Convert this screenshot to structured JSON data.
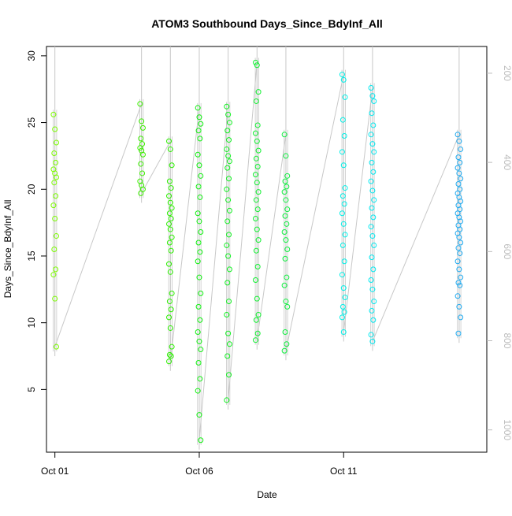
{
  "chart_data": {
    "type": "scatter",
    "title": "ATOM3 Southbound Days_Since_BdyInf_All",
    "xlabel": "Date",
    "ylabel": "Days_Since_BdyInf_All",
    "xlim": [
      "2023-09-30T17:00",
      "2023-10-15T23:00"
    ],
    "ylim": [
      0.3,
      30.7
    ],
    "x_ticks": [
      {
        "at": "2023-10-01T00:00",
        "label": "Oct 01"
      },
      {
        "at": "2023-10-06T00:00",
        "label": "Oct 06"
      },
      {
        "at": "2023-10-11T00:00",
        "label": "Oct 11"
      }
    ],
    "y_ticks": [
      5,
      10,
      15,
      20,
      25,
      30
    ],
    "y2_ticks": [
      200,
      400,
      600,
      800,
      1000
    ],
    "y2lim": [
      1050,
      140
    ],
    "y2_color": "#bdbdbd",
    "profile_line_color": "#c8c8c8",
    "grid": false,
    "legend": "none",
    "series": [
      {
        "color": "#7cfc00",
        "x": [
          "2023-10-01T00:00",
          "2023-10-01T00:00",
          "2023-10-01T00:00",
          "2023-10-01T00:00",
          "2023-10-01T00:00",
          "2023-10-01T00:00",
          "2023-10-01T00:00",
          "2023-10-01T00:00",
          "2023-10-01T00:00",
          "2023-10-01T00:00",
          "2023-10-01T00:00",
          "2023-10-01T00:00",
          "2023-10-01T00:00",
          "2023-10-01T00:00",
          "2023-10-01T00:00",
          "2023-10-01T00:00",
          "2023-10-01T00:00",
          "2023-10-01T00:00"
        ],
        "y": [
          25.6,
          24.5,
          23.5,
          22.7,
          22.0,
          21.5,
          21.2,
          20.9,
          20.5,
          19.5,
          18.8,
          17.8,
          16.5,
          15.5,
          14.0,
          13.6,
          11.8,
          8.2
        ]
      },
      {
        "color": "#3cf000",
        "x": [
          "2023-10-04T00:00",
          "2023-10-04T00:00",
          "2023-10-04T00:00",
          "2023-10-04T00:00",
          "2023-10-04T00:00",
          "2023-10-04T00:00",
          "2023-10-04T00:00",
          "2023-10-04T00:00",
          "2023-10-04T00:00",
          "2023-10-04T00:00",
          "2023-10-04T00:00",
          "2023-10-04T00:00",
          "2023-10-04T00:00",
          "2023-10-04T00:00"
        ],
        "y": [
          26.4,
          25.1,
          24.6,
          23.8,
          23.4,
          23.1,
          22.9,
          22.6,
          21.9,
          21.2,
          20.6,
          20.3,
          20.0,
          19.7
        ]
      },
      {
        "color": "#2cf000",
        "x": [
          "2023-10-05T00:00",
          "2023-10-05T00:00",
          "2023-10-05T00:00",
          "2023-10-05T00:00",
          "2023-10-05T00:00",
          "2023-10-05T00:00",
          "2023-10-05T00:00",
          "2023-10-05T00:00",
          "2023-10-05T00:00",
          "2023-10-05T00:00",
          "2023-10-05T00:00",
          "2023-10-05T00:00",
          "2023-10-05T00:00",
          "2023-10-05T00:00",
          "2023-10-05T00:00",
          "2023-10-05T00:00",
          "2023-10-05T00:00",
          "2023-10-05T00:00",
          "2023-10-05T00:00",
          "2023-10-05T00:00",
          "2023-10-05T00:00",
          "2023-10-05T00:00",
          "2023-10-05T00:00",
          "2023-10-05T00:00",
          "2023-10-05T00:00",
          "2023-10-05T00:00"
        ],
        "y": [
          23.6,
          23.0,
          21.8,
          20.6,
          20.1,
          19.5,
          19.0,
          18.6,
          18.2,
          17.8,
          17.4,
          17.0,
          16.4,
          16.0,
          15.4,
          14.4,
          13.8,
          12.2,
          11.6,
          11.0,
          10.4,
          9.6,
          8.2,
          7.6,
          7.5,
          7.1
        ]
      },
      {
        "color": "#10f010",
        "x": [
          "2023-10-06T00:00",
          "2023-10-06T00:00",
          "2023-10-06T00:00",
          "2023-10-06T00:00",
          "2023-10-06T00:00",
          "2023-10-06T00:00",
          "2023-10-06T00:00",
          "2023-10-06T00:00",
          "2023-10-06T00:00",
          "2023-10-06T00:00",
          "2023-10-06T00:00",
          "2023-10-06T00:00",
          "2023-10-06T00:00",
          "2023-10-06T00:00",
          "2023-10-06T00:00",
          "2023-10-06T00:00",
          "2023-10-06T00:00",
          "2023-10-06T00:00",
          "2023-10-06T00:00",
          "2023-10-06T00:00",
          "2023-10-06T00:00",
          "2023-10-06T00:00",
          "2023-10-06T00:00",
          "2023-10-06T00:00",
          "2023-10-06T00:00",
          "2023-10-06T00:00",
          "2023-10-06T00:00",
          "2023-10-06T00:00"
        ],
        "y": [
          26.1,
          25.4,
          24.9,
          24.4,
          23.8,
          22.6,
          21.8,
          21.0,
          20.2,
          19.4,
          18.2,
          17.6,
          16.8,
          16.0,
          15.3,
          14.6,
          13.4,
          12.2,
          11.2,
          10.2,
          9.3,
          8.6,
          8.0,
          7.0,
          5.8,
          4.9,
          3.1,
          1.2
        ]
      },
      {
        "color": "#10f020",
        "x": [
          "2023-10-07T00:00",
          "2023-10-07T00:00",
          "2023-10-07T00:00",
          "2023-10-07T00:00",
          "2023-10-07T00:00",
          "2023-10-07T00:00",
          "2023-10-07T00:00",
          "2023-10-07T00:00",
          "2023-10-07T00:00",
          "2023-10-07T00:00",
          "2023-10-07T00:00",
          "2023-10-07T00:00",
          "2023-10-07T00:00",
          "2023-10-07T00:00",
          "2023-10-07T00:00",
          "2023-10-07T00:00",
          "2023-10-07T00:00",
          "2023-10-07T00:00",
          "2023-10-07T00:00",
          "2023-10-07T00:00",
          "2023-10-07T00:00",
          "2023-10-07T00:00",
          "2023-10-07T00:00",
          "2023-10-07T00:00",
          "2023-10-07T00:00",
          "2023-10-07T00:00"
        ],
        "y": [
          26.2,
          25.6,
          25.0,
          24.4,
          23.7,
          23.0,
          22.5,
          22.1,
          21.6,
          20.8,
          20.0,
          19.2,
          18.4,
          17.6,
          16.6,
          15.8,
          15.0,
          14.0,
          13.0,
          11.6,
          10.6,
          9.2,
          8.4,
          7.5,
          6.1,
          4.2
        ]
      },
      {
        "color": "#10f030",
        "x": [
          "2023-10-08T00:00",
          "2023-10-08T00:00",
          "2023-10-08T00:00",
          "2023-10-08T00:00",
          "2023-10-08T00:00",
          "2023-10-08T00:00",
          "2023-10-08T00:00",
          "2023-10-08T00:00",
          "2023-10-08T00:00",
          "2023-10-08T00:00",
          "2023-10-08T00:00",
          "2023-10-08T00:00",
          "2023-10-08T00:00",
          "2023-10-08T00:00",
          "2023-10-08T00:00",
          "2023-10-08T00:00",
          "2023-10-08T00:00",
          "2023-10-08T00:00",
          "2023-10-08T00:00",
          "2023-10-08T00:00",
          "2023-10-08T00:00",
          "2023-10-08T00:00",
          "2023-10-08T00:00",
          "2023-10-08T00:00",
          "2023-10-08T00:00",
          "2023-10-08T00:00"
        ],
        "y": [
          29.5,
          29.3,
          27.3,
          26.6,
          24.8,
          24.2,
          23.6,
          22.9,
          22.3,
          21.7,
          21.1,
          20.5,
          19.8,
          19.2,
          18.5,
          17.8,
          17.0,
          16.2,
          15.4,
          14.2,
          13.2,
          11.8,
          10.6,
          10.2,
          9.2,
          8.7
        ]
      },
      {
        "color": "#10f040",
        "x": [
          "2023-10-09T00:00",
          "2023-10-09T00:00",
          "2023-10-09T00:00",
          "2023-10-09T00:00",
          "2023-10-09T00:00",
          "2023-10-09T00:00",
          "2023-10-09T00:00",
          "2023-10-09T00:00",
          "2023-10-09T00:00",
          "2023-10-09T00:00",
          "2023-10-09T00:00",
          "2023-10-09T00:00",
          "2023-10-09T00:00",
          "2023-10-09T00:00",
          "2023-10-09T00:00",
          "2023-10-09T00:00",
          "2023-10-09T00:00",
          "2023-10-09T00:00",
          "2023-10-09T00:00",
          "2023-10-09T00:00",
          "2023-10-09T00:00"
        ],
        "y": [
          24.1,
          22.5,
          21.0,
          20.6,
          20.2,
          19.8,
          19.2,
          18.5,
          18.0,
          17.4,
          16.8,
          16.2,
          15.5,
          14.8,
          13.4,
          12.8,
          11.6,
          11.2,
          9.3,
          8.4,
          7.9
        ]
      },
      {
        "color": "#00f0e8",
        "x": [
          "2023-10-11T00:00",
          "2023-10-11T00:00",
          "2023-10-11T00:00",
          "2023-10-11T00:00",
          "2023-10-11T00:00",
          "2023-10-11T00:00",
          "2023-10-11T00:00",
          "2023-10-11T00:00",
          "2023-10-11T00:00",
          "2023-10-11T00:00",
          "2023-10-11T00:00",
          "2023-10-11T00:00",
          "2023-10-11T00:00",
          "2023-10-11T00:00",
          "2023-10-11T00:00",
          "2023-10-11T00:00",
          "2023-10-11T00:00",
          "2023-10-11T00:00",
          "2023-10-11T00:00",
          "2023-10-11T00:00",
          "2023-10-11T00:00",
          "2023-10-11T00:00"
        ],
        "y": [
          28.6,
          28.2,
          26.9,
          25.2,
          24.0,
          22.8,
          21.8,
          20.1,
          19.5,
          18.9,
          18.2,
          17.4,
          16.6,
          15.8,
          14.6,
          13.6,
          12.6,
          11.9,
          11.2,
          10.8,
          10.4,
          9.3
        ]
      },
      {
        "color": "#00e8f0",
        "x": [
          "2023-10-12T00:00",
          "2023-10-12T00:00",
          "2023-10-12T00:00",
          "2023-10-12T00:00",
          "2023-10-12T00:00",
          "2023-10-12T00:00",
          "2023-10-12T00:00",
          "2023-10-12T00:00",
          "2023-10-12T00:00",
          "2023-10-12T00:00",
          "2023-10-12T00:00",
          "2023-10-12T00:00",
          "2023-10-12T00:00",
          "2023-10-12T00:00",
          "2023-10-12T00:00",
          "2023-10-12T00:00",
          "2023-10-12T00:00",
          "2023-10-12T00:00",
          "2023-10-12T00:00",
          "2023-10-12T00:00",
          "2023-10-12T00:00",
          "2023-10-12T00:00",
          "2023-10-12T00:00",
          "2023-10-12T00:00",
          "2023-10-12T00:00",
          "2023-10-12T00:00",
          "2023-10-12T00:00"
        ],
        "y": [
          27.6,
          27.0,
          26.6,
          25.7,
          24.8,
          24.1,
          23.4,
          22.8,
          22.0,
          21.3,
          20.6,
          19.9,
          19.2,
          18.6,
          17.9,
          17.2,
          16.5,
          15.8,
          14.9,
          14.0,
          13.2,
          12.5,
          11.6,
          10.9,
          10.2,
          9.1,
          8.6
        ]
      },
      {
        "color": "#1eaaf0",
        "x": [
          "2023-10-15T00:00",
          "2023-10-15T00:00",
          "2023-10-15T00:00",
          "2023-10-15T00:00",
          "2023-10-15T00:00",
          "2023-10-15T00:00",
          "2023-10-15T00:00",
          "2023-10-15T00:00",
          "2023-10-15T00:00",
          "2023-10-15T00:00",
          "2023-10-15T00:00",
          "2023-10-15T00:00",
          "2023-10-15T00:00",
          "2023-10-15T00:00",
          "2023-10-15T00:00",
          "2023-10-15T00:00",
          "2023-10-15T00:00",
          "2023-10-15T00:00",
          "2023-10-15T00:00",
          "2023-10-15T00:00",
          "2023-10-15T00:00",
          "2023-10-15T00:00",
          "2023-10-15T00:00",
          "2023-10-15T00:00",
          "2023-10-15T00:00",
          "2023-10-15T00:00",
          "2023-10-15T00:00",
          "2023-10-15T00:00",
          "2023-10-15T00:00",
          "2023-10-15T00:00",
          "2023-10-15T00:00",
          "2023-10-15T00:00",
          "2023-10-15T00:00",
          "2023-10-15T00:00"
        ],
        "y": [
          24.1,
          23.6,
          23.0,
          22.4,
          22.0,
          21.6,
          21.2,
          20.8,
          20.4,
          20.0,
          19.7,
          19.4,
          19.1,
          18.8,
          18.5,
          18.2,
          17.9,
          17.6,
          17.3,
          17.0,
          16.7,
          16.4,
          16.0,
          15.6,
          15.2,
          14.6,
          14.0,
          13.4,
          13.0,
          12.8,
          12.0,
          11.2,
          10.4,
          9.2
        ]
      }
    ]
  }
}
